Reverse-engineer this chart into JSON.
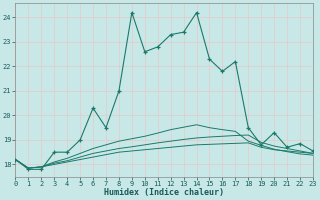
{
  "xlabel": "Humidex (Indice chaleur)",
  "background_color": "#c8e8e8",
  "grid_color": "#b0d8d8",
  "line_color": "#1a7a6a",
  "xmin": 0,
  "xmax": 23,
  "ymin": 17.5,
  "ymax": 24.6,
  "yticks": [
    18,
    19,
    20,
    21,
    22,
    23,
    24
  ],
  "xticks": [
    0,
    1,
    2,
    3,
    4,
    5,
    6,
    7,
    8,
    9,
    10,
    11,
    12,
    13,
    14,
    15,
    16,
    17,
    18,
    19,
    20,
    21,
    22,
    23
  ],
  "main_x": [
    0,
    1,
    2,
    3,
    4,
    5,
    6,
    7,
    8,
    9,
    10,
    11,
    12,
    13,
    14,
    15,
    16,
    17,
    18,
    19,
    20,
    21,
    22,
    23
  ],
  "main_y": [
    18.2,
    17.8,
    17.8,
    18.5,
    18.5,
    19.0,
    20.3,
    19.5,
    21.0,
    24.2,
    22.6,
    22.8,
    23.3,
    23.4,
    24.2,
    22.3,
    21.8,
    22.2,
    19.5,
    18.8,
    19.3,
    18.7,
    18.85,
    18.55
  ],
  "line2_x": [
    0,
    1,
    2,
    3,
    4,
    5,
    6,
    7,
    8,
    9,
    10,
    11,
    12,
    13,
    14,
    15,
    16,
    17,
    18,
    19,
    20,
    21,
    22,
    23
  ],
  "line2_y": [
    18.2,
    17.85,
    17.9,
    18.0,
    18.1,
    18.2,
    18.3,
    18.4,
    18.5,
    18.55,
    18.6,
    18.65,
    18.7,
    18.75,
    18.8,
    18.82,
    18.84,
    18.86,
    18.88,
    18.7,
    18.6,
    18.55,
    18.5,
    18.45
  ],
  "line3_x": [
    0,
    1,
    2,
    3,
    4,
    5,
    6,
    7,
    8,
    9,
    10,
    11,
    12,
    13,
    14,
    15,
    16,
    17,
    18,
    19,
    20,
    21,
    22,
    23
  ],
  "line3_y": [
    18.2,
    17.85,
    17.9,
    18.05,
    18.15,
    18.3,
    18.45,
    18.55,
    18.65,
    18.72,
    18.8,
    18.88,
    18.95,
    19.02,
    19.08,
    19.12,
    19.15,
    19.18,
    19.2,
    18.9,
    18.75,
    18.65,
    18.55,
    18.45
  ],
  "line4_x": [
    0,
    1,
    2,
    3,
    4,
    5,
    6,
    7,
    8,
    9,
    10,
    11,
    12,
    13,
    14,
    15,
    16,
    17,
    18,
    19,
    20,
    21,
    22,
    23
  ],
  "line4_y": [
    18.2,
    17.85,
    17.9,
    18.1,
    18.25,
    18.45,
    18.65,
    18.8,
    18.95,
    19.05,
    19.15,
    19.28,
    19.42,
    19.52,
    19.62,
    19.5,
    19.42,
    19.35,
    18.95,
    18.78,
    18.62,
    18.52,
    18.43,
    18.38
  ]
}
